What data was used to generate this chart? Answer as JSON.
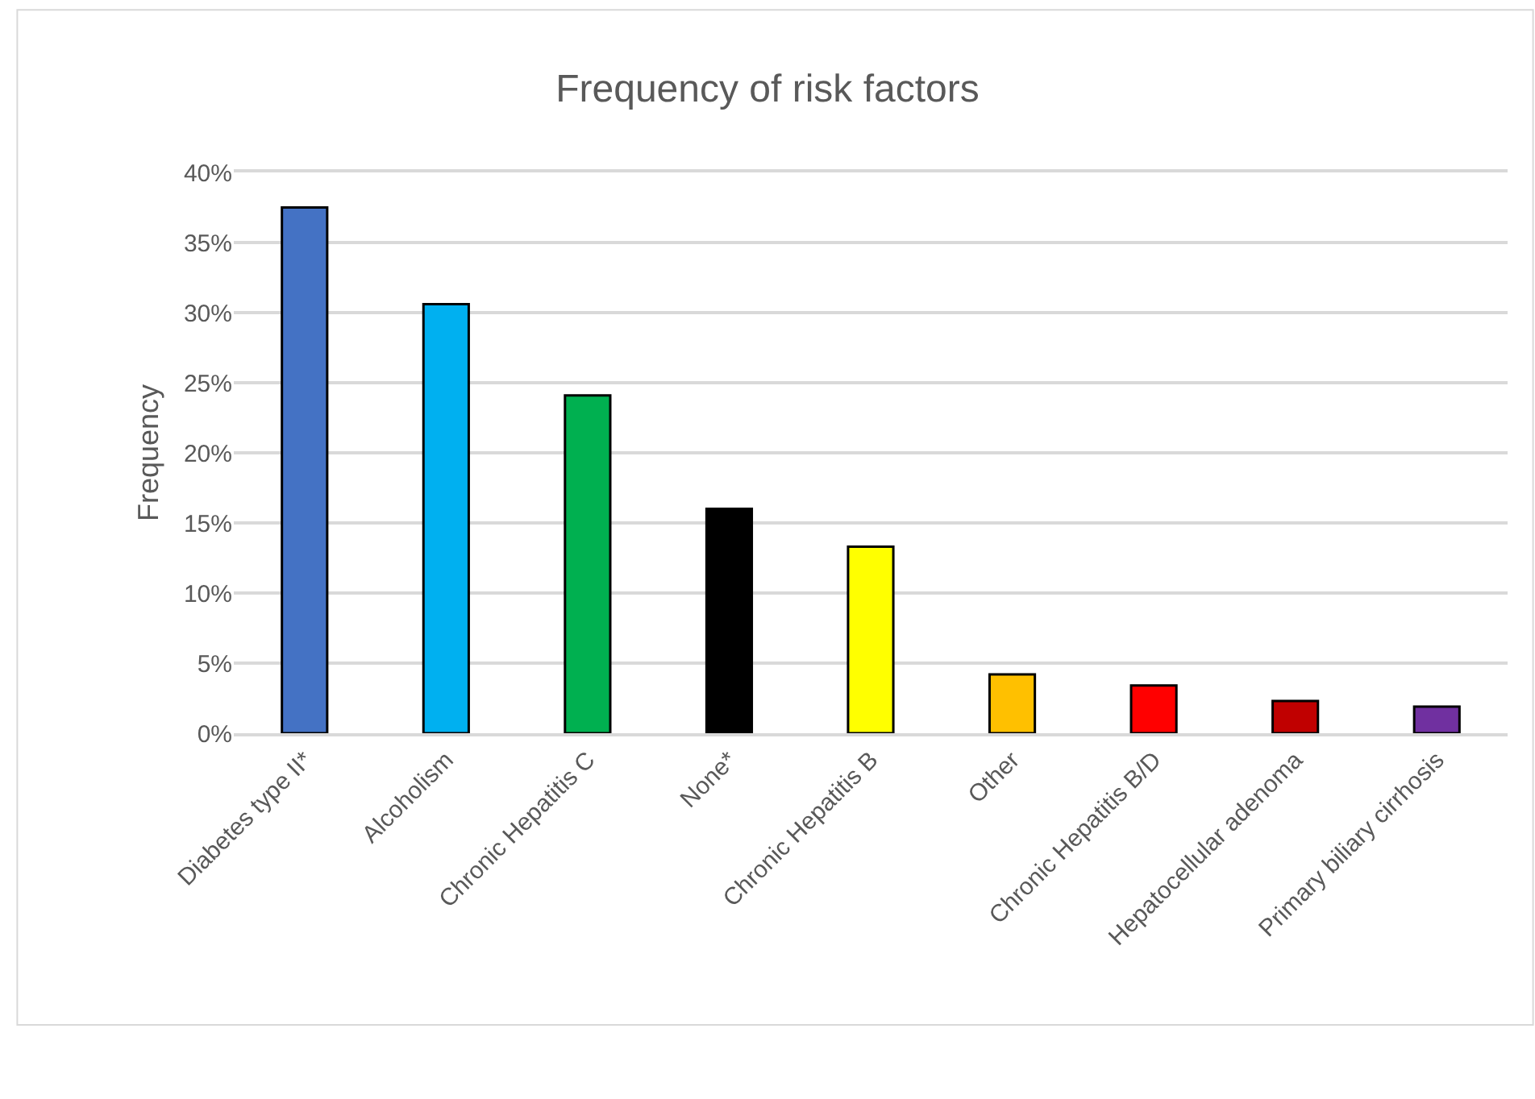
{
  "chart_data": {
    "type": "bar",
    "title": "Frequency of risk factors",
    "ylabel": "Frequency",
    "categories": [
      "Diabetes type II*",
      "Alcoholism",
      "Chronic Hepatitis C",
      "None*",
      "Chronic Hepatitis B",
      "Other",
      "Chronic Hepatitis B/D",
      "Hepatocellular adenoma",
      "Primary biliary cirrhosis"
    ],
    "values": [
      37.5,
      30.6,
      24.1,
      16.0,
      13.3,
      4.2,
      3.4,
      2.3,
      1.9
    ],
    "colors": [
      "#4472c4",
      "#00b0f0",
      "#00b050",
      "#000000",
      "#ffff00",
      "#ffc000",
      "#ff0000",
      "#c00000",
      "#7030a0"
    ],
    "ylim": [
      0,
      40
    ],
    "yticks": [
      {
        "value": 0,
        "label": "0%"
      },
      {
        "value": 5,
        "label": "5%"
      },
      {
        "value": 10,
        "label": "10%"
      },
      {
        "value": 15,
        "label": "15%"
      },
      {
        "value": 20,
        "label": "20%"
      },
      {
        "value": 25,
        "label": "25%"
      },
      {
        "value": 30,
        "label": "30%"
      },
      {
        "value": 35,
        "label": "35%"
      },
      {
        "value": 40,
        "label": "40%"
      }
    ],
    "grid": "y"
  }
}
